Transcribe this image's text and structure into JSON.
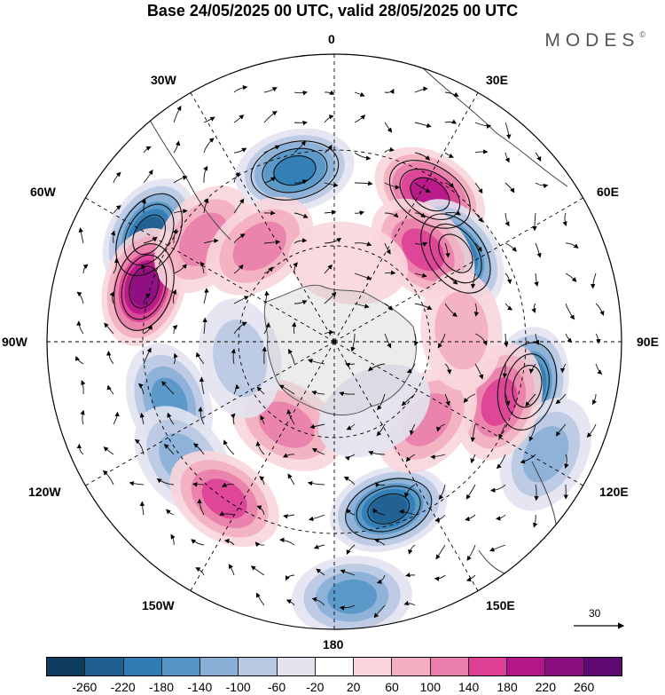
{
  "title": "Base 24/05/2025 00 UTC, valid 28/05/2025 00 UTC",
  "brand": "MODES",
  "brand_mark": "©",
  "longitude_labels": {
    "n0": "0",
    "e30": "30E",
    "e60": "60E",
    "e90": "90E",
    "e120": "120E",
    "e150": "150E",
    "s180": "180",
    "w150": "150W",
    "w120": "120W",
    "w90": "90W",
    "w60": "60W",
    "w30": "30W"
  },
  "reference_vector": "30",
  "colorbar": {
    "labels": [
      "-260",
      "-220",
      "-180",
      "-140",
      "-100",
      "-60",
      "-20",
      "20",
      "60",
      "100",
      "140",
      "180",
      "220",
      "260"
    ],
    "colors": [
      "#0d3b5e",
      "#1f5f8f",
      "#2f7cb5",
      "#5596c7",
      "#8aafd6",
      "#b8c8e3",
      "#e2e3ef",
      "#ffffff",
      "#f8d6dc",
      "#f3aec0",
      "#ea7eaa",
      "#dd3f95",
      "#b5168a",
      "#8c0f80",
      "#5e0a72"
    ]
  },
  "anomaly_blobs": [
    {
      "lon": -13,
      "colat": 55,
      "value": -200
    },
    {
      "lon": 33,
      "colat": 55,
      "value": 180
    },
    {
      "lon": 54,
      "colat": 47,
      "value": -220
    },
    {
      "lon": 44,
      "colat": 40,
      "value": 140
    },
    {
      "lon": -60,
      "colat": 67,
      "value": -220
    },
    {
      "lon": -74,
      "colat": 62,
      "value": 220
    },
    {
      "lon": -52,
      "colat": 52,
      "value": 100
    },
    {
      "lon": -38,
      "colat": 38,
      "value": 100
    },
    {
      "lon": -110,
      "colat": 55,
      "value": -140
    },
    {
      "lon": -128,
      "colat": 60,
      "value": -100
    },
    {
      "lon": -145,
      "colat": 60,
      "value": 140
    },
    {
      "lon": 162,
      "colat": 55,
      "value": -220
    },
    {
      "lon": 176,
      "colat": 80,
      "value": -160
    },
    {
      "lon": 103,
      "colat": 62,
      "value": -220
    },
    {
      "lon": 118,
      "colat": 75,
      "value": -100
    },
    {
      "lon": 110,
      "colat": 55,
      "value": 160
    },
    {
      "lon": 130,
      "colat": 38,
      "value": 100
    },
    {
      "lon": -150,
      "colat": 30,
      "value": 100
    },
    {
      "lon": 85,
      "colat": 40,
      "value": 60
    },
    {
      "lon": -100,
      "colat": 30,
      "value": -60
    },
    {
      "lon": 10,
      "colat": 25,
      "value": 20
    },
    {
      "lon": 150,
      "colat": 25,
      "value": -20
    }
  ],
  "contours": [
    {
      "lon": -13,
      "colat": 55,
      "value": -200
    },
    {
      "lon": 54,
      "colat": 47,
      "value": -220
    },
    {
      "lon": -60,
      "colat": 67,
      "value": -220
    },
    {
      "lon": -74,
      "colat": 62,
      "value": 220
    },
    {
      "lon": 162,
      "colat": 55,
      "value": -220
    },
    {
      "lon": 103,
      "colat": 62,
      "value": -220
    },
    {
      "lon": 33,
      "colat": 55,
      "value": 180
    }
  ]
}
